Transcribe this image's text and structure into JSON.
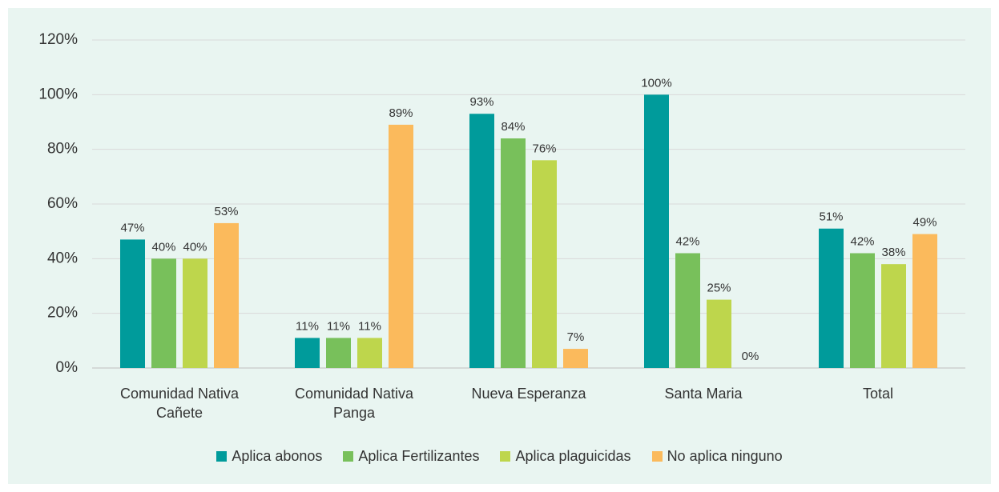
{
  "chart_data": {
    "type": "bar",
    "categories": [
      "Comunidad Nativa Cañete",
      "Comunidad Nativa Panga",
      "Nueva Esperanza",
      "Santa Maria",
      "Total"
    ],
    "series": [
      {
        "name": "Aplica abonos",
        "color": "#009b9b",
        "values": [
          47,
          11,
          93,
          100,
          51
        ],
        "value_labels": [
          "47%",
          "11%",
          "93%",
          "100%",
          "51%"
        ]
      },
      {
        "name": "Aplica Fertilizantes",
        "color": "#78c05b",
        "values": [
          40,
          11,
          84,
          42,
          42
        ],
        "value_labels": [
          "40%",
          "11%",
          "84%",
          "42%",
          "42%"
        ]
      },
      {
        "name": "Aplica plaguicidas",
        "color": "#bed64c",
        "values": [
          40,
          11,
          76,
          25,
          38
        ],
        "value_labels": [
          "40%",
          "11%",
          "76%",
          "25%",
          "38%"
        ]
      },
      {
        "name": "No aplica ninguno",
        "color": "#fbba5c",
        "values": [
          53,
          89,
          7,
          0,
          49
        ],
        "value_labels": [
          "53%",
          "89%",
          "7%",
          "0%",
          "49%"
        ]
      }
    ],
    "ylim": [
      0,
      120
    ],
    "yticks": [
      {
        "value": 0,
        "label": "0%"
      },
      {
        "value": 20,
        "label": "20%"
      },
      {
        "value": 40,
        "label": "40%"
      },
      {
        "value": 60,
        "label": "60%"
      },
      {
        "value": 80,
        "label": "80%"
      },
      {
        "value": 100,
        "label": "100%"
      },
      {
        "value": 120,
        "label": "120%"
      }
    ],
    "grid": true,
    "legend": "bottom"
  }
}
